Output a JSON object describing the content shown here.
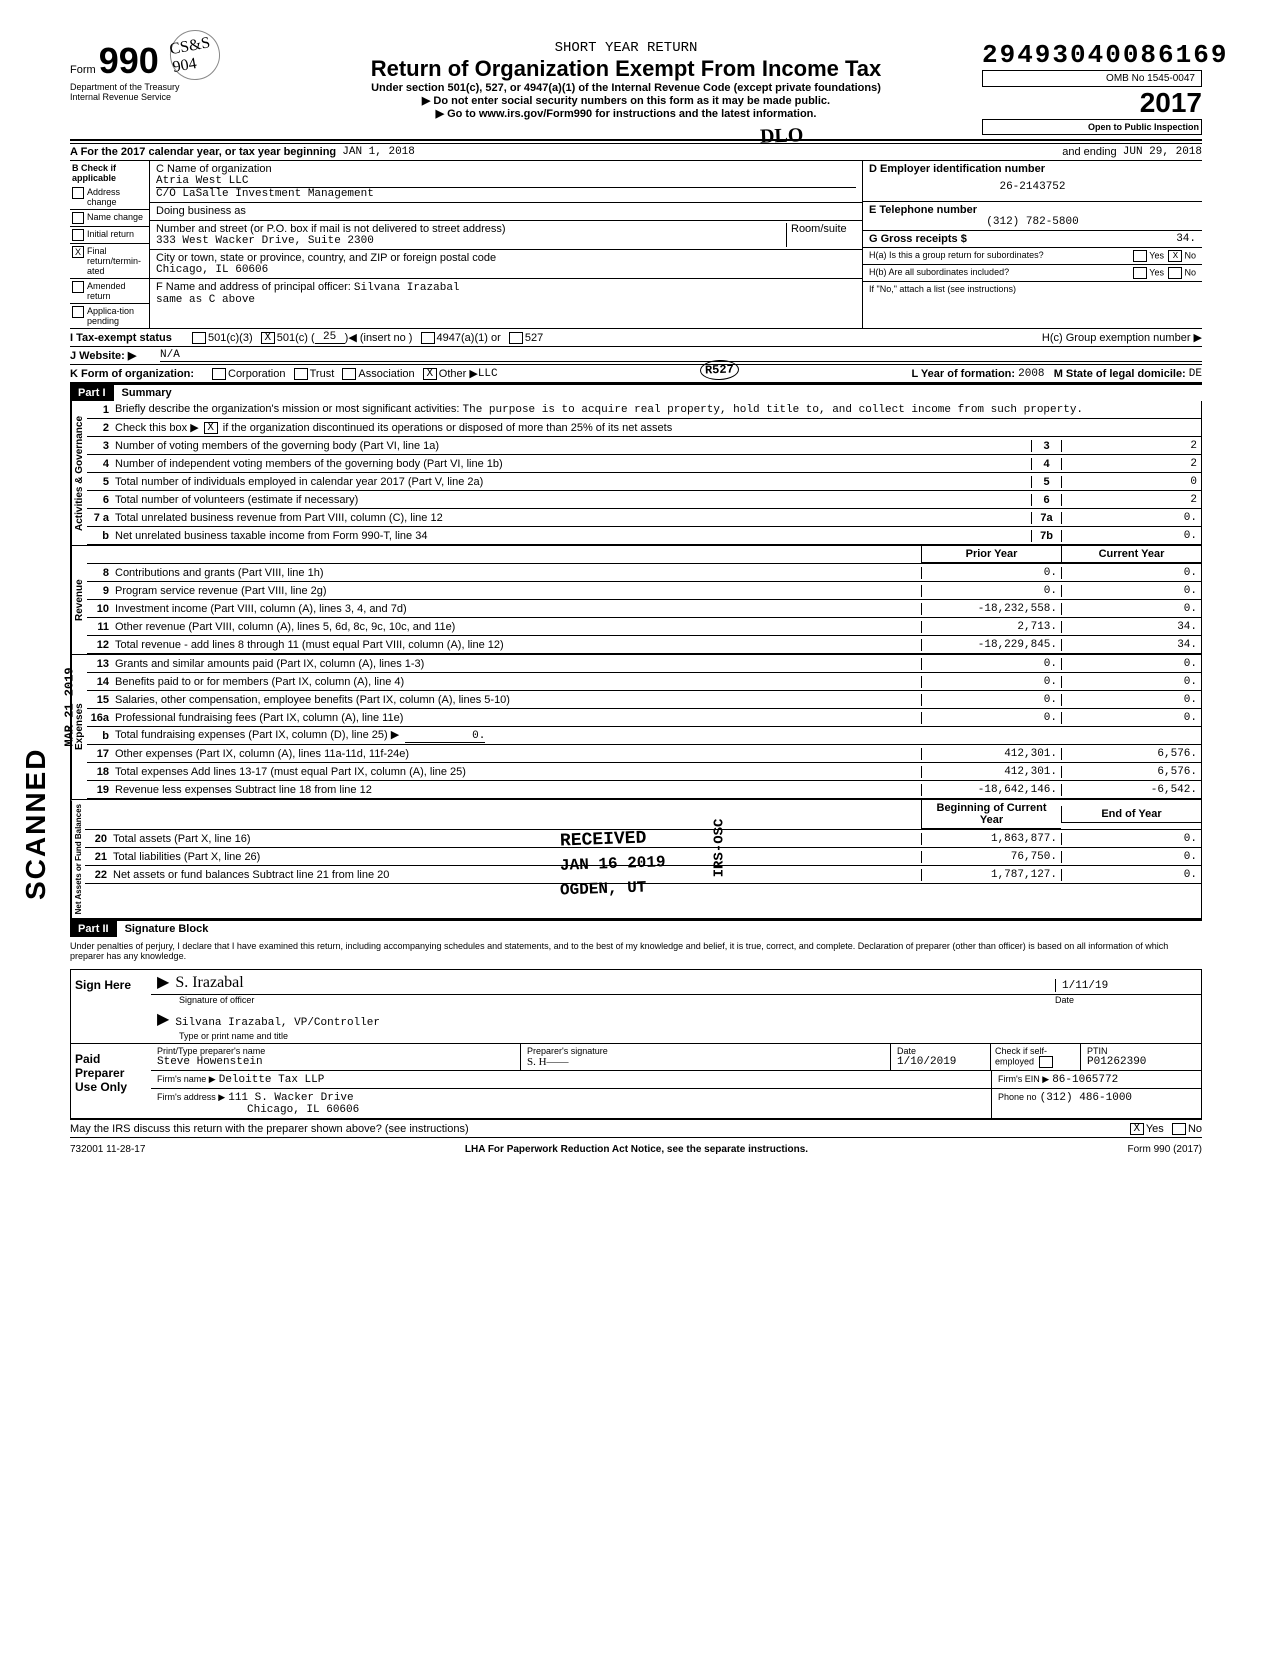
{
  "filing_number": "29493040086169",
  "short_year": "SHORT YEAR RETURN",
  "title": "Return of Organization Exempt From Income Tax",
  "subtitle": "Under section 501(c), 527, or 4947(a)(1) of the Internal Revenue Code (except private foundations)",
  "warn1": "▶ Do not enter social security numbers on this form as it may be made public.",
  "warn2": "▶ Go to www.irs.gov/Form990 for instructions and the latest information.",
  "omb": "OMB No  1545-0047",
  "year": "2017",
  "open": "Open to Public Inspection",
  "form_no": "990",
  "form_label": "Form",
  "dept1": "Department of the Treasury",
  "dept2": "Internal Revenue Service",
  "initials_mark": "CS&S 904",
  "line_a": {
    "label": "A  For the 2017 calendar year, or tax year beginning",
    "begin": "JAN 1, 2018",
    "and": "and ending",
    "end": "JUN 29, 2018"
  },
  "col_b": {
    "header": "B  Check if applicable",
    "items": [
      {
        "label": "Address change",
        "checked": false
      },
      {
        "label": "Name change",
        "checked": false
      },
      {
        "label": "Initial return",
        "checked": false
      },
      {
        "label": "Final return/termin-ated",
        "checked": true
      },
      {
        "label": "Amended return",
        "checked": false
      },
      {
        "label": "Applica-tion pending",
        "checked": false
      }
    ]
  },
  "col_c": {
    "name_label": "C  Name of organization",
    "name": "Atria West LLC",
    "co": "C/O LaSalle Investment Management",
    "dba_label": "Doing business as",
    "dba": "",
    "street_label": "Number and street (or P.O. box if mail is not delivered to street address)",
    "room_label": "Room/suite",
    "street": "333 West Wacker Drive, Suite 2300",
    "city_label": "City or town, state or province, country, and ZIP or foreign postal code",
    "city": "Chicago, IL  60606",
    "officer_label": "F  Name and address of principal officer:",
    "officer": "Silvana Irazabal",
    "officer_addr": "same as C above"
  },
  "col_d": {
    "ein_label": "D  Employer identification number",
    "ein": "26-2143752",
    "phone_label": "E  Telephone number",
    "phone": "(312) 782-5800",
    "gross_label": "G  Gross receipts $",
    "gross": "34.",
    "h_a": "H(a) Is this a group return for subordinates?",
    "h_a_yes": "Yes",
    "h_a_no": "No",
    "h_a_checked": "No",
    "h_b": "H(b) Are all subordinates included?",
    "h_b_yes": "Yes",
    "h_b_no": "No",
    "h_b_note": "If \"No,\" attach a list  (see instructions)",
    "h_c": "H(c) Group exemption number ▶"
  },
  "line_i": {
    "label": "I   Tax-exempt status",
    "opts": [
      "501(c)(3)",
      "501(c) (",
      "25",
      ")◀  (insert no )",
      "4947(a)(1) or",
      "527"
    ],
    "checked_501c": true
  },
  "line_j": {
    "label": "J  Website: ▶",
    "value": "N/A"
  },
  "line_k": {
    "label": "K  Form of organization:",
    "opts": [
      "Corporation",
      "Trust",
      "Association",
      "Other ▶"
    ],
    "other_val": "LLC",
    "other_checked": true,
    "year_label": "L  Year of formation:",
    "year": "2008",
    "state_label": "M  State of legal domicile:",
    "state": "DE"
  },
  "part1": {
    "hdr": "Part I",
    "title": "Summary",
    "mission_label": "Briefly describe the organization's mission or most significant activities:",
    "mission": "The purpose is to acquire real property, hold title to, and collect income from such property.",
    "line2": "Check this box ▶",
    "line2_checked": true,
    "line2_rest": "if the organization discontinued its operations or disposed of more than 25% of its net assets",
    "gov_lines": [
      {
        "n": "3",
        "desc": "Number of voting members of the governing body (Part VI, line 1a)",
        "cell": "3",
        "val": "2"
      },
      {
        "n": "4",
        "desc": "Number of independent voting members of the governing body (Part VI, line 1b)",
        "cell": "4",
        "val": "2"
      },
      {
        "n": "5",
        "desc": "Total number of individuals employed in calendar year 2017 (Part V, line 2a)",
        "cell": "5",
        "val": "0"
      },
      {
        "n": "6",
        "desc": "Total number of volunteers (estimate if necessary)",
        "cell": "6",
        "val": "2"
      },
      {
        "n": "7 a",
        "desc": "Total unrelated business revenue from Part VIII, column (C), line 12",
        "cell": "7a",
        "val": "0."
      },
      {
        "n": "b",
        "desc": "Net unrelated business taxable income from Form 990-T, line 34",
        "cell": "7b",
        "val": "0."
      }
    ],
    "col_prior": "Prior Year",
    "col_current": "Current Year",
    "rev_lines": [
      {
        "n": "8",
        "desc": "Contributions and grants (Part VIII, line 1h)",
        "p": "0.",
        "c": "0."
      },
      {
        "n": "9",
        "desc": "Program service revenue (Part VIII, line 2g)",
        "p": "0.",
        "c": "0."
      },
      {
        "n": "10",
        "desc": "Investment income (Part VIII, column (A), lines 3, 4, and 7d)",
        "p": "-18,232,558.",
        "c": "0."
      },
      {
        "n": "11",
        "desc": "Other revenue (Part VIII, column (A), lines 5, 6d, 8c, 9c, 10c, and 11e)",
        "p": "2,713.",
        "c": "34."
      },
      {
        "n": "12",
        "desc": "Total revenue - add lines 8 through 11 (must equal Part VIII, column (A), line 12)",
        "p": "-18,229,845.",
        "c": "34."
      }
    ],
    "exp_lines": [
      {
        "n": "13",
        "desc": "Grants and similar amounts paid (Part IX, column (A), lines 1-3)",
        "p": "0.",
        "c": "0."
      },
      {
        "n": "14",
        "desc": "Benefits paid to or for members (Part IX, column (A), line 4)",
        "p": "0.",
        "c": "0."
      },
      {
        "n": "15",
        "desc": "Salaries, other compensation, employee benefits (Part IX, column (A), lines 5-10)",
        "p": "0.",
        "c": "0."
      },
      {
        "n": "16a",
        "desc": "Professional fundraising fees (Part IX, column (A), line 11e)",
        "p": "0.",
        "c": "0."
      },
      {
        "n": "b",
        "desc": "Total fundraising expenses (Part IX, column (D), line 25) ▶",
        "inline": "0.",
        "p": "",
        "c": ""
      },
      {
        "n": "17",
        "desc": "Other expenses (Part IX, column (A), lines 11a-11d, 11f-24e)",
        "p": "412,301.",
        "c": "6,576."
      },
      {
        "n": "18",
        "desc": "Total expenses  Add lines 13-17 (must equal Part IX, column (A), line 25)",
        "p": "412,301.",
        "c": "6,576."
      },
      {
        "n": "19",
        "desc": "Revenue less expenses  Subtract line 18 from line 12",
        "p": "-18,642,146.",
        "c": "-6,542."
      }
    ],
    "col_boy": "Beginning of Current Year",
    "col_eoy": "End of Year",
    "net_lines": [
      {
        "n": "20",
        "desc": "Total assets (Part X, line 16)",
        "p": "1,863,877.",
        "c": "0."
      },
      {
        "n": "21",
        "desc": "Total liabilities (Part X, line 26)",
        "p": "76,750.",
        "c": "0."
      },
      {
        "n": "22",
        "desc": "Net assets or fund balances  Subtract line 21 from line 20",
        "p": "1,787,127.",
        "c": "0."
      }
    ],
    "vtabs": [
      "Activities & Governance",
      "Revenue",
      "Expenses",
      "Net Assets or Fund Balances"
    ]
  },
  "part2": {
    "hdr": "Part II",
    "title": "Signature Block",
    "perjury": "Under penalties of perjury, I declare that I have examined this return, including accompanying schedules and statements, and to the best of my knowledge and belief, it is true, correct, and complete. Declaration of preparer (other than officer) is based on all information of which preparer has any knowledge.",
    "sign_here": "Sign Here",
    "sig_label": "Signature of officer",
    "sig_script": "S. Irazabal",
    "date_label": "Date",
    "date_val": "1/11/19",
    "name_label": "Type or print name and title",
    "name_val": "Silvana Irazabal, VP/Controller",
    "paid": "Paid Preparer Use Only",
    "prep_name_label": "Print/Type preparer's name",
    "prep_name": "Steve Howenstein",
    "prep_sig_label": "Preparer's signature",
    "prep_sig": "S. H——",
    "prep_date_label": "Date",
    "prep_date": "1/10/2019",
    "check_label": "Check if self-employed",
    "ptin_label": "PTIN",
    "ptin": "P01262390",
    "firm_name_label": "Firm's name ▶",
    "firm_name": "Deloitte Tax LLP",
    "firm_ein_label": "Firm's EIN ▶",
    "firm_ein": "86-1065772",
    "firm_addr_label": "Firm's address ▶",
    "firm_addr1": "111 S. Wacker Drive",
    "firm_addr2": "Chicago, IL 60606",
    "firm_phone_label": "Phone no",
    "firm_phone": "(312) 486-1000",
    "discuss": "May the IRS discuss this return with the preparer shown above? (see instructions)",
    "discuss_yes": "Yes",
    "discuss_no": "No",
    "discuss_checked": "Yes"
  },
  "footer": {
    "code": "732001  11-28-17",
    "lha": "LHA  For Paperwork Reduction Act Notice, see the separate instructions.",
    "form": "Form 990 (2017)"
  },
  "stamps": {
    "received": "RECEIVED",
    "date": "JAN 16 2019",
    "ogden": "OGDEN, UT",
    "irs_osc": "IRS-OSC",
    "scanned": "SCANNED",
    "margin_date": "MAR 21 2019",
    "r527": "R527",
    "initial": "DLO"
  }
}
